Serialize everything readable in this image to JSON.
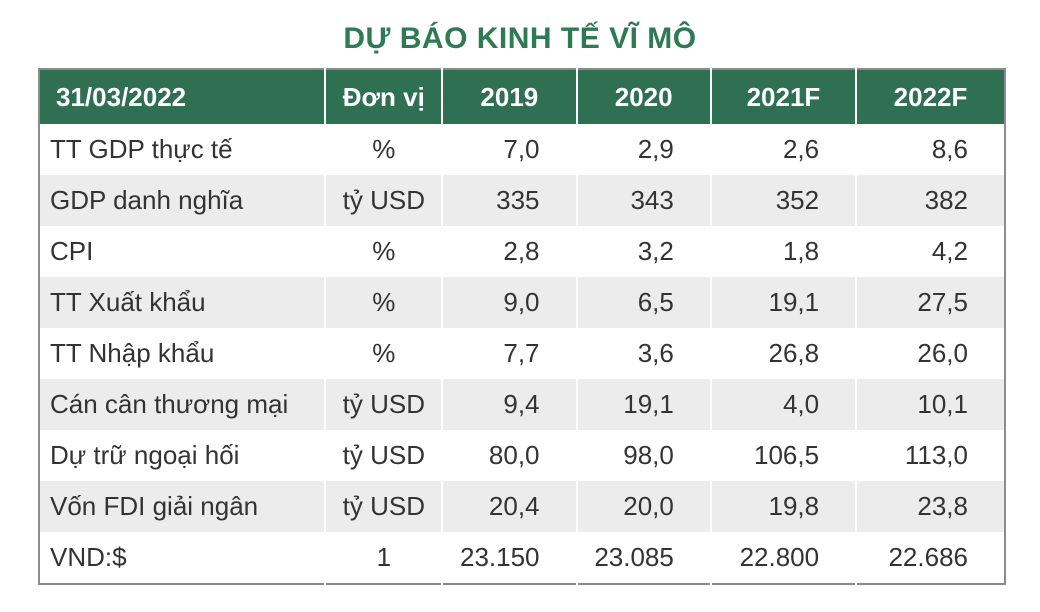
{
  "title": "DỰ BÁO KINH TẾ VĨ MÔ",
  "header": {
    "date": "31/03/2022",
    "unit": "Đơn vị",
    "years": [
      "2019",
      "2020",
      "2021F",
      "2022F"
    ]
  },
  "rows": [
    {
      "label": "TT GDP thực tế",
      "unit": "%",
      "values": [
        "7,0",
        "2,9",
        "2,6",
        "8,6"
      ]
    },
    {
      "label": "GDP danh nghĩa",
      "unit": "tỷ USD",
      "values": [
        "335",
        "343",
        "352",
        "382"
      ]
    },
    {
      "label": "CPI",
      "unit": "%",
      "values": [
        "2,8",
        "3,2",
        "1,8",
        "4,2"
      ]
    },
    {
      "label": "TT Xuất khẩu",
      "unit": "%",
      "values": [
        "9,0",
        "6,5",
        "19,1",
        "27,5"
      ]
    },
    {
      "label": "TT Nhập khẩu",
      "unit": "%",
      "values": [
        "7,7",
        "3,6",
        "26,8",
        "26,0"
      ]
    },
    {
      "label": "Cán cân thương mại",
      "unit": "tỷ USD",
      "values": [
        "9,4",
        "19,1",
        "4,0",
        "10,1"
      ]
    },
    {
      "label": "Dự trữ ngoại hối",
      "unit": "tỷ USD",
      "values": [
        "80,0",
        "98,0",
        "106,5",
        "113,0"
      ]
    },
    {
      "label": "Vốn FDI giải ngân",
      "unit": "tỷ USD",
      "values": [
        "20,4",
        "20,0",
        "19,8",
        "23,8"
      ]
    },
    {
      "label": "VND:$",
      "unit": "1",
      "values": [
        "23.150",
        "23.085",
        "22.800",
        "22.686"
      ]
    }
  ],
  "colors": {
    "header_bg": "#2f7052",
    "title": "#2e7a52",
    "stripe": "#ececec"
  }
}
